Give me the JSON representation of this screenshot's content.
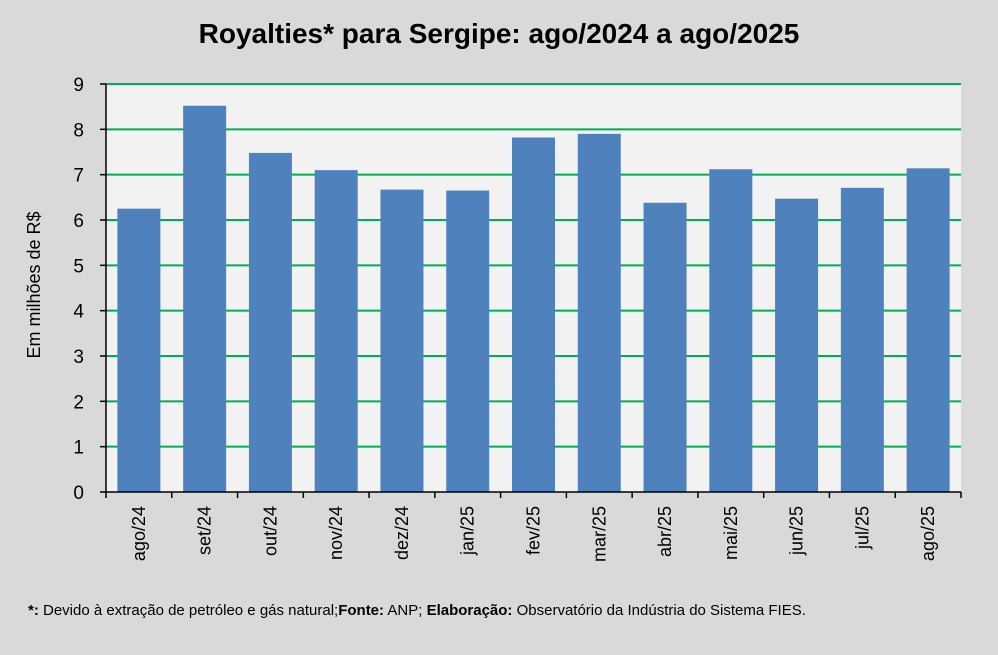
{
  "chart_data": {
    "type": "bar",
    "title": "Royalties* para Sergipe: ago/2024 a ago/2025",
    "xlabel": "",
    "ylabel": "Em milhões de R$",
    "ylim": [
      0,
      9
    ],
    "yticks": [
      0,
      1,
      2,
      3,
      4,
      5,
      6,
      7,
      8,
      9
    ],
    "categories": [
      "ago/24",
      "set/24",
      "out/24",
      "nov/24",
      "dez/24",
      "jan/25",
      "fev/25",
      "mar/25",
      "abr/25",
      "mai/25",
      "jun/25",
      "jul/25",
      "ago/25"
    ],
    "values": [
      6.25,
      8.52,
      7.48,
      7.1,
      6.67,
      6.65,
      7.82,
      7.9,
      6.38,
      7.12,
      6.47,
      6.71,
      7.14
    ],
    "grid": true,
    "legend": "none"
  },
  "colors": {
    "bar": "#4f81bd",
    "grid": "#00b050",
    "plot_bg": "#f2f2f2",
    "page_bg": "#d9d9d9"
  },
  "footnote": {
    "marker": "*:",
    "note": " Devido à extração de petróleo e gás natural;",
    "source_label": "Fonte:",
    "source": " ANP; ",
    "credit_label": "Elaboração:",
    "credit": " Observatório da Indústria do Sistema FIES."
  }
}
